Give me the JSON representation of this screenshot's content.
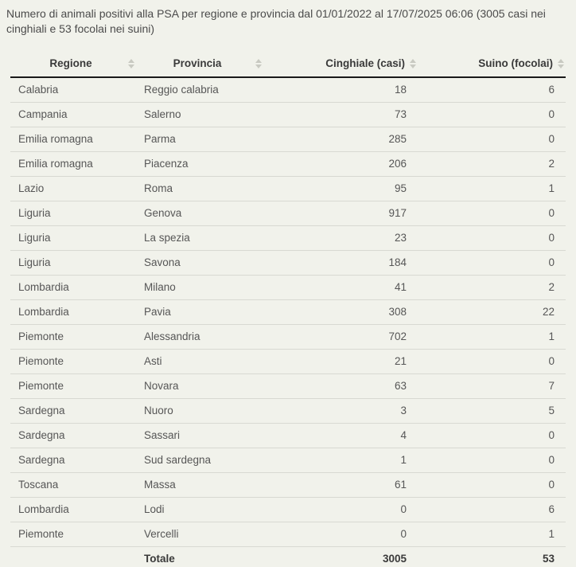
{
  "title": "Numero di animali positivi alla PSA per regione e provincia dal 01/01/2022 al 17/07/2025 06:06 (3005 casi nei cinghiali e 53 focolai nei suini)",
  "colors": {
    "page_background": "#f1f2eb",
    "dark_rule": "#1a1a1a",
    "row_divider": "#d8d9d2",
    "header_text": "#3a3a3a",
    "cell_text": "#565656",
    "title_text": "#4b4b4b",
    "sort_icon": "#c9cac2"
  },
  "table": {
    "columns": [
      {
        "label": "Regione",
        "sortable": true,
        "align": "center"
      },
      {
        "label": "Provincia",
        "sortable": true,
        "align": "center"
      },
      {
        "label": "Cinghiale (casi)",
        "sortable": true,
        "align": "right"
      },
      {
        "label": "Suino (focolai)",
        "sortable": true,
        "align": "right"
      }
    ],
    "rows": [
      {
        "regione": "Calabria",
        "provincia": "Reggio calabria",
        "cinghiale": 18,
        "suino": 6
      },
      {
        "regione": "Campania",
        "provincia": "Salerno",
        "cinghiale": 73,
        "suino": 0
      },
      {
        "regione": "Emilia romagna",
        "provincia": "Parma",
        "cinghiale": 285,
        "suino": 0
      },
      {
        "regione": "Emilia romagna",
        "provincia": "Piacenza",
        "cinghiale": 206,
        "suino": 2
      },
      {
        "regione": "Lazio",
        "provincia": "Roma",
        "cinghiale": 95,
        "suino": 1
      },
      {
        "regione": "Liguria",
        "provincia": "Genova",
        "cinghiale": 917,
        "suino": 0
      },
      {
        "regione": "Liguria",
        "provincia": "La spezia",
        "cinghiale": 23,
        "suino": 0
      },
      {
        "regione": "Liguria",
        "provincia": "Savona",
        "cinghiale": 184,
        "suino": 0
      },
      {
        "regione": "Lombardia",
        "provincia": "Milano",
        "cinghiale": 41,
        "suino": 2
      },
      {
        "regione": "Lombardia",
        "provincia": "Pavia",
        "cinghiale": 308,
        "suino": 22
      },
      {
        "regione": "Piemonte",
        "provincia": "Alessandria",
        "cinghiale": 702,
        "suino": 1
      },
      {
        "regione": "Piemonte",
        "provincia": "Asti",
        "cinghiale": 21,
        "suino": 0
      },
      {
        "regione": "Piemonte",
        "provincia": "Novara",
        "cinghiale": 63,
        "suino": 7
      },
      {
        "regione": "Sardegna",
        "provincia": "Nuoro",
        "cinghiale": 3,
        "suino": 5
      },
      {
        "regione": "Sardegna",
        "provincia": "Sassari",
        "cinghiale": 4,
        "suino": 0
      },
      {
        "regione": "Sardegna",
        "provincia": "Sud sardegna",
        "cinghiale": 1,
        "suino": 0
      },
      {
        "regione": "Toscana",
        "provincia": "Massa",
        "cinghiale": 61,
        "suino": 0
      },
      {
        "regione": "Lombardia",
        "provincia": "Lodi",
        "cinghiale": 0,
        "suino": 6
      },
      {
        "regione": "Piemonte",
        "provincia": "Vercelli",
        "cinghiale": 0,
        "suino": 1
      }
    ],
    "footer": {
      "label": "Totale",
      "cinghiale": 3005,
      "suino": 53
    }
  }
}
